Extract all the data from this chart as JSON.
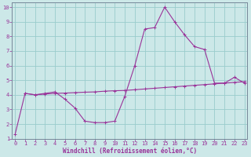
{
  "line1_x": [
    0,
    1,
    2,
    3,
    4,
    5,
    6,
    7,
    8,
    9,
    10,
    11,
    12,
    13,
    14,
    15,
    16,
    17,
    18,
    19,
    20,
    21,
    22,
    23
  ],
  "line1_y": [
    1.3,
    4.1,
    4.0,
    4.1,
    4.2,
    3.7,
    3.1,
    2.2,
    2.1,
    2.1,
    2.2,
    3.9,
    6.0,
    8.5,
    8.6,
    10.0,
    9.0,
    8.1,
    7.3,
    7.1,
    4.8,
    4.8,
    5.2,
    4.8
  ],
  "line3_x": [
    1,
    2,
    3,
    4,
    5,
    6,
    7,
    8,
    9,
    10,
    11,
    12,
    13,
    14,
    15,
    16,
    17,
    18,
    19,
    20,
    21,
    22,
    23
  ],
  "line3_y": [
    4.1,
    4.0,
    4.05,
    4.1,
    4.12,
    4.15,
    4.18,
    4.2,
    4.25,
    4.28,
    4.3,
    4.35,
    4.4,
    4.45,
    4.5,
    4.55,
    4.6,
    4.65,
    4.7,
    4.75,
    4.8,
    4.85,
    4.9
  ],
  "line_color": "#993399",
  "bg_color": "#cce8e8",
  "grid_color": "#99cccc",
  "xlabel": "Windchill (Refroidissement éolien,°C)",
  "xticks": [
    0,
    1,
    2,
    3,
    4,
    5,
    6,
    7,
    8,
    9,
    10,
    11,
    12,
    13,
    14,
    15,
    16,
    17,
    18,
    19,
    20,
    21,
    22,
    23
  ],
  "yticks": [
    1,
    2,
    3,
    4,
    5,
    6,
    7,
    8,
    9,
    10
  ],
  "tick_fontsize": 5.0,
  "axis_fontsize": 5.5
}
